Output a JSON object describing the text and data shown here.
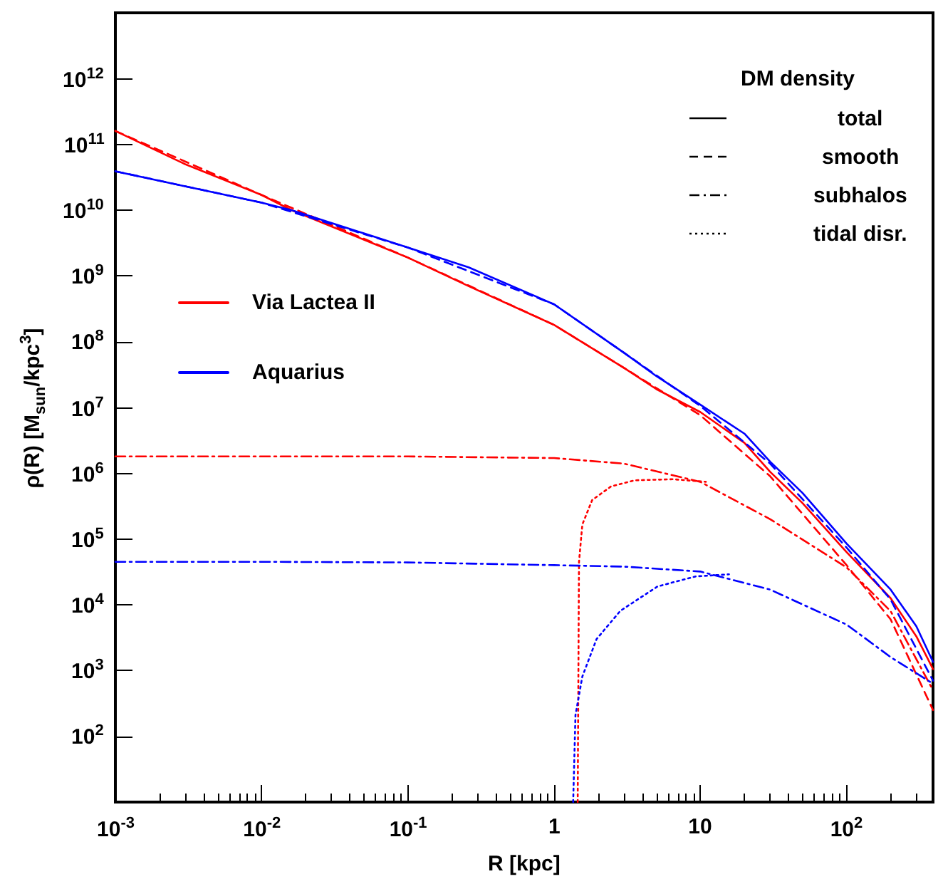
{
  "chart_data": {
    "type": "line",
    "xlabel": "R  [kpc]",
    "ylabel": "ρ(R)  [M$_{sun}$/kpc$^{3}$]",
    "legend_title": "DM density",
    "annotations": [
      "total",
      "smooth",
      "subhalos",
      "tidal disr."
    ],
    "log": "xy",
    "grid": false,
    "marker": "none",
    "legend": "left",
    "xlim": [
      0.001,
      390
    ],
    "ylim": [
      10,
      10000000000000.0
    ],
    "xticks": [
      {
        "value": 0.001,
        "label": "10$^{-3}$"
      },
      {
        "value": 0.01,
        "label": "10$^{-2}$"
      },
      {
        "value": 0.1,
        "label": "10$^{-1}$"
      },
      1,
      10,
      {
        "value": 100,
        "label": "10$^{2}$"
      }
    ],
    "yticks": [
      {
        "value": 100,
        "label": "10$^{2}$"
      },
      {
        "value": 1000,
        "label": "10$^{3}$"
      },
      {
        "value": 10000,
        "label": "10$^{4}$"
      },
      {
        "value": 100000,
        "label": "10$^{5}$"
      },
      {
        "value": 1000000,
        "label": "10$^{6}$"
      },
      {
        "value": 10000000,
        "label": "10$^{7}$"
      },
      {
        "value": 100000000,
        "label": "10$^{8}$"
      },
      {
        "value": 1000000000,
        "label": "10$^{9}$"
      },
      {
        "value": 10000000000,
        "label": "10$^{10}$"
      },
      {
        "value": 100000000000,
        "label": "10$^{11}$"
      },
      {
        "value": 1000000000000,
        "label": "10$^{12}$"
      }
    ],
    "series": [
      {
        "name": "Via Lactea II",
        "color": "#ff0000",
        "line_style": "solid",
        "x": [
          0.001,
          0.003,
          0.01,
          0.016,
          0.1,
          0.26,
          1,
          3,
          5,
          10,
          20,
          30,
          50,
          100,
          200,
          300,
          390
        ],
        "values": [
          160000000000.0,
          50000000000.0,
          17000000000.0,
          10000000000.0,
          1900000000.0,
          700000000.0,
          180000000.0,
          40000000.0,
          19000000.0,
          8500000.0,
          2900000.0,
          1050000.0,
          350000.0,
          63000.0,
          12600.0,
          3300,
          1050
        ]
      },
      {
        "color": "#ff0000",
        "line_style": "dashed",
        "x": [
          0.001,
          0.01,
          0.1,
          1,
          3,
          10,
          30,
          100,
          200,
          390
        ],
        "values": [
          160000000000.0,
          17000000000.0,
          1900000000.0,
          180000000.0,
          40000000.0,
          7600000.0,
          900000.0,
          40000.0,
          6000,
          250
        ]
      },
      {
        "color": "#ff0000",
        "line_style": "dashdot",
        "x": [
          0.001,
          0.01,
          0.1,
          1,
          3,
          10,
          30,
          100,
          200,
          390
        ],
        "values": [
          1800000.0,
          1800000.0,
          1800000.0,
          1700000.0,
          1400000.0,
          740000.0,
          200000.0,
          37000.0,
          8000,
          500
        ]
      },
      {
        "color": "#ff0000",
        "line_style": "dotted",
        "x": [
          1.45,
          1.48,
          1.56,
          1.82,
          2.45,
          3.55,
          6.5,
          10.9
        ],
        "values": [
          10,
          45000.0,
          166000.0,
          390000.0,
          630000.0,
          780000.0,
          810000.0,
          740000.0
        ]
      },
      {
        "name": "Aquarius",
        "color": "#0000ff",
        "line_style": "solid",
        "x": [
          0.001,
          0.003,
          0.01,
          0.016,
          0.1,
          0.26,
          1,
          3,
          5,
          10,
          20,
          30,
          50,
          100,
          200,
          300,
          390
        ],
        "values": [
          39000000000.0,
          23000000000.0,
          13000000000.0,
          10000000000.0,
          2700000000.0,
          1350000000.0,
          370000000.0,
          68000000.0,
          30000000.0,
          11000000.0,
          4000000.0,
          1500000.0,
          500000.0,
          85000.0,
          17000.0,
          4700,
          1350
        ]
      },
      {
        "color": "#0000ff",
        "line_style": "dashed",
        "x": [
          0.001,
          0.01,
          0.1,
          1,
          3,
          10,
          30,
          100,
          200,
          390
        ],
        "values": [
          39000000000.0,
          13000000000.0,
          2700000000.0,
          370000000.0,
          68000000.0,
          10500000.0,
          1400000.0,
          74000.0,
          12000.0,
          700
        ]
      },
      {
        "color": "#0000ff",
        "line_style": "dashdot",
        "x": [
          0.001,
          0.01,
          0.1,
          1,
          3,
          10,
          30,
          100,
          200,
          390
        ],
        "values": [
          45000.0,
          45000.0,
          44000.0,
          40000.0,
          38000.0,
          32000.0,
          17000.0,
          5000,
          1600,
          630
        ]
      },
      {
        "color": "#0000ff",
        "line_style": "dotted",
        "x": [
          1.35,
          1.4,
          1.56,
          1.95,
          2.84,
          5.1,
          9.3,
          15.7
        ],
        "values": [
          10,
          210,
          810,
          3000,
          8100,
          19000.0,
          27000.0,
          29000.0
        ]
      }
    ]
  }
}
